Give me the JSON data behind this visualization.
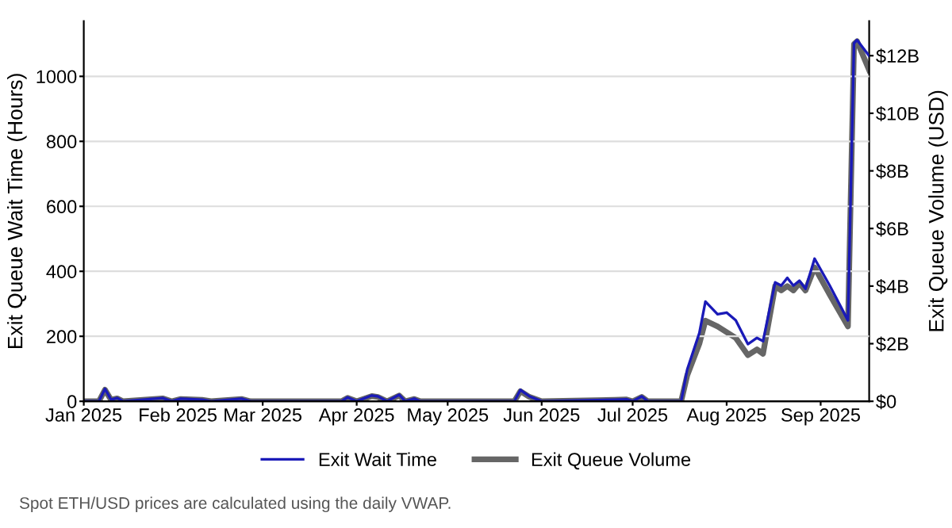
{
  "chart_data": {
    "type": "line",
    "ylabel": "Exit Queue Wait Time (Hours)",
    "y2label": "Exit Queue Volume (USD)",
    "xlim": [
      "2025-01-01",
      "2025-09-17"
    ],
    "xticks": [
      {
        "value": "2025-01-01",
        "label": "Jan 2025"
      },
      {
        "value": "2025-02-01",
        "label": "Feb 2025"
      },
      {
        "value": "2025-03-01",
        "label": "Mar 2025"
      },
      {
        "value": "2025-04-01",
        "label": "Apr 2025"
      },
      {
        "value": "2025-05-01",
        "label": "May 2025"
      },
      {
        "value": "2025-06-01",
        "label": "Jun 2025"
      },
      {
        "value": "2025-07-01",
        "label": "Jul 2025"
      },
      {
        "value": "2025-08-01",
        "label": "Aug 2025"
      },
      {
        "value": "2025-09-01",
        "label": "Sep 2025"
      }
    ],
    "ylim": [
      0,
      1170
    ],
    "yticks": [
      0,
      200,
      400,
      600,
      800,
      1000
    ],
    "y2lim": [
      0,
      13.2
    ],
    "y2ticks": [
      {
        "value": 0,
        "label": "$0"
      },
      {
        "value": 2,
        "label": "$2B"
      },
      {
        "value": 4,
        "label": "$4B"
      },
      {
        "value": 6,
        "label": "$6B"
      },
      {
        "value": 8,
        "label": "$8B"
      },
      {
        "value": 10,
        "label": "$10B"
      },
      {
        "value": 12,
        "label": "$12B"
      }
    ],
    "grid": "y",
    "legend": "bottom",
    "line_style": "solid",
    "marker": "none",
    "x": [
      "2025-01-01",
      "2025-01-06",
      "2025-01-08",
      "2025-01-10",
      "2025-01-12",
      "2025-01-14",
      "2025-01-27",
      "2025-01-30",
      "2025-02-02",
      "2025-02-09",
      "2025-02-12",
      "2025-02-22",
      "2025-02-25",
      "2025-03-27",
      "2025-03-29",
      "2025-04-01",
      "2025-04-06",
      "2025-04-08",
      "2025-04-11",
      "2025-04-15",
      "2025-04-17",
      "2025-04-20",
      "2025-04-22",
      "2025-05-23",
      "2025-05-25",
      "2025-05-28",
      "2025-06-01",
      "2025-06-25",
      "2025-06-29",
      "2025-07-01",
      "2025-07-04",
      "2025-07-06",
      "2025-07-17",
      "2025-07-19",
      "2025-07-23",
      "2025-07-25",
      "2025-07-29",
      "2025-08-01",
      "2025-08-04",
      "2025-08-08",
      "2025-08-11",
      "2025-08-13",
      "2025-08-17",
      "2025-08-19",
      "2025-08-21",
      "2025-08-23",
      "2025-08-25",
      "2025-08-27",
      "2025-08-30",
      "2025-09-04",
      "2025-09-10",
      "2025-09-12",
      "2025-09-13",
      "2025-09-17"
    ],
    "series": [
      {
        "name": "Exit Wait Time",
        "color": "#1a1ab8",
        "values": [
          0,
          0,
          38,
          5,
          10,
          0,
          10,
          0,
          8,
          5,
          0,
          8,
          0,
          0,
          12,
          0,
          18,
          15,
          0,
          20,
          0,
          8,
          0,
          0,
          35,
          15,
          0,
          5,
          6,
          0,
          15,
          0,
          0,
          98,
          210,
          307,
          268,
          273,
          249,
          176,
          195,
          185,
          366,
          356,
          380,
          356,
          371,
          346,
          439,
          356,
          249,
          1102,
          1112,
          1063
        ]
      },
      {
        "name": "Exit Queue Volume",
        "color": "#666666",
        "axis": "y2",
        "values": [
          0,
          0,
          0.4,
          0.05,
          0.1,
          0,
          0.1,
          0,
          0.08,
          0.05,
          0,
          0.08,
          0,
          0,
          0.12,
          0,
          0.18,
          0.15,
          0,
          0.2,
          0,
          0.08,
          0,
          0,
          0.35,
          0.15,
          0,
          0.05,
          0.06,
          0,
          0.15,
          0,
          0,
          0.9,
          2.0,
          2.8,
          2.6,
          2.4,
          2.2,
          1.6,
          1.8,
          1.65,
          4.0,
          3.85,
          4.0,
          3.85,
          4.1,
          3.85,
          4.65,
          3.7,
          2.6,
          12.4,
          12.5,
          11.5
        ]
      }
    ],
    "annotations": [
      "Spot ETH/USD prices are calculated using the daily VWAP."
    ]
  }
}
